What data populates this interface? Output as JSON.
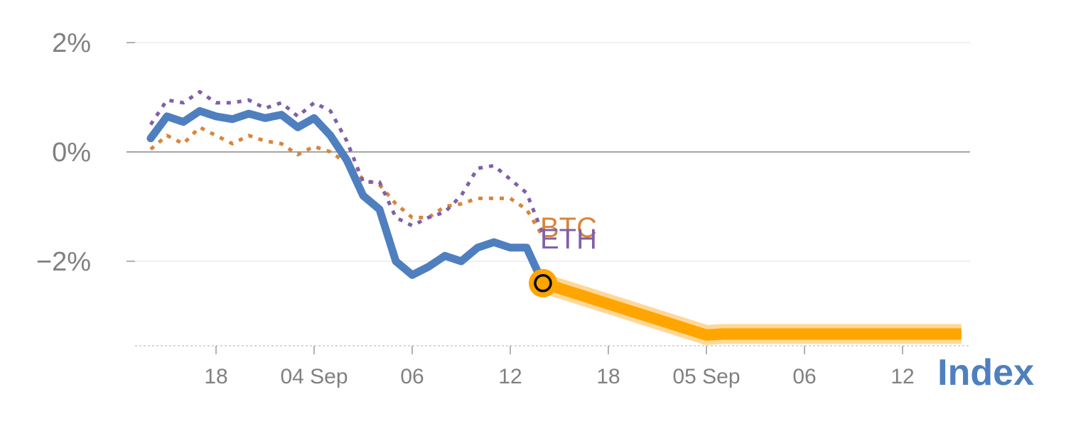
{
  "chart_data": {
    "type": "line",
    "title": "",
    "xlabel": "",
    "ylabel": "",
    "ylim": [
      -3.5,
      2.2
    ],
    "y_ticks": [
      {
        "value": 2,
        "label": "2%"
      },
      {
        "value": 0,
        "label": "0%"
      },
      {
        "value": -2,
        "label": "−2%"
      }
    ],
    "x_range": [
      -0.5,
      26
    ],
    "x_ticks": [
      {
        "x": 2,
        "label": "18"
      },
      {
        "x": 5,
        "label": "04 Sep"
      },
      {
        "x": 8,
        "label": "06"
      },
      {
        "x": 11,
        "label": "12"
      },
      {
        "x": 14,
        "label": "18"
      },
      {
        "x": 17,
        "label": "05 Sep"
      },
      {
        "x": 20,
        "label": "06"
      },
      {
        "x": 23,
        "label": "12"
      }
    ],
    "grid": true,
    "zero_line": true,
    "series": [
      {
        "name": "BTC",
        "style": "dotted",
        "color": "#d9853b",
        "x": [
          0,
          0.5,
          1,
          1.5,
          2,
          2.5,
          3,
          3.5,
          4,
          4.5,
          5,
          5.5,
          6,
          6.5,
          7,
          7.5,
          8,
          8.5,
          9,
          9.5,
          10,
          10.5,
          11,
          11.5,
          12
        ],
        "y": [
          0.05,
          0.3,
          0.15,
          0.45,
          0.3,
          0.15,
          0.3,
          0.2,
          0.15,
          -0.05,
          0.1,
          0.0,
          -0.2,
          -0.5,
          -0.6,
          -0.95,
          -1.2,
          -1.2,
          -1.0,
          -0.95,
          -0.85,
          -0.85,
          -0.85,
          -1.05,
          -1.55
        ]
      },
      {
        "name": "ETH",
        "style": "dotted",
        "color": "#8060a8",
        "x": [
          0,
          0.5,
          1,
          1.5,
          2,
          2.5,
          3,
          3.5,
          4,
          4.5,
          5,
          5.5,
          6,
          6.5,
          7,
          7.5,
          8,
          8.5,
          9,
          9.5,
          10,
          10.5,
          11,
          11.5,
          12
        ],
        "y": [
          0.5,
          0.95,
          0.9,
          1.1,
          0.9,
          0.9,
          0.95,
          0.8,
          0.9,
          0.65,
          0.9,
          0.75,
          0.2,
          -0.55,
          -0.55,
          -1.2,
          -1.35,
          -1.2,
          -1.1,
          -0.8,
          -0.3,
          -0.25,
          -0.5,
          -0.75,
          -1.5
        ]
      },
      {
        "name": "Index",
        "style": "solid",
        "color": "#4f7fbf",
        "x": [
          0,
          0.5,
          1,
          1.5,
          2,
          2.5,
          3,
          3.5,
          4,
          4.5,
          5,
          5.5,
          6,
          6.5,
          7,
          7.5,
          8,
          8.5,
          9,
          9.5,
          10,
          10.5,
          11,
          11.5,
          12
        ],
        "y": [
          0.25,
          0.65,
          0.55,
          0.75,
          0.65,
          0.6,
          0.7,
          0.62,
          0.68,
          0.45,
          0.62,
          0.3,
          -0.15,
          -0.8,
          -1.05,
          -2.0,
          -2.25,
          -2.1,
          -1.9,
          -2.0,
          -1.75,
          -1.65,
          -1.75,
          -1.75,
          -2.4
        ]
      }
    ],
    "projection": {
      "color": "#ffa500",
      "x": [
        12,
        17,
        17.5,
        19,
        22,
        24.8
      ],
      "y": [
        -2.4,
        -3.35,
        -3.33,
        -3.33,
        -3.33,
        -3.33
      ]
    },
    "marker": {
      "x": 12,
      "y": -2.4
    },
    "series_labels": [
      {
        "text": "BTC",
        "color": "#d9853b"
      },
      {
        "text": "ETH",
        "color": "#8060a8"
      }
    ],
    "index_label": {
      "text": "Index",
      "color": "#4f7fbf"
    }
  }
}
